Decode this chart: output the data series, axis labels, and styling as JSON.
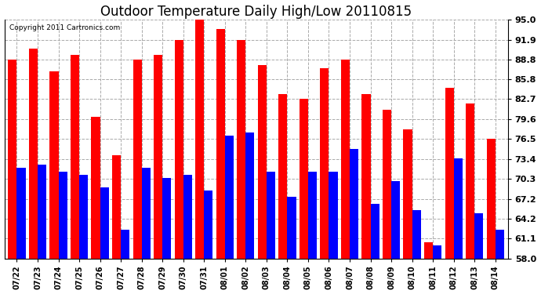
{
  "title": "Outdoor Temperature Daily High/Low 20110815",
  "copyright": "Copyright 2011 Cartronics.com",
  "labels": [
    "07/22",
    "07/23",
    "07/24",
    "07/25",
    "07/26",
    "07/27",
    "07/28",
    "07/29",
    "07/30",
    "07/31",
    "08/01",
    "08/02",
    "08/03",
    "08/04",
    "08/05",
    "08/06",
    "08/07",
    "08/08",
    "08/09",
    "08/10",
    "08/11",
    "08/12",
    "08/13",
    "08/14"
  ],
  "highs": [
    88.8,
    90.5,
    87.0,
    89.5,
    80.0,
    74.0,
    88.8,
    89.5,
    91.9,
    95.0,
    93.5,
    91.9,
    88.0,
    83.5,
    82.7,
    87.5,
    88.8,
    83.5,
    81.0,
    78.0,
    60.5,
    84.5,
    82.0,
    76.5
  ],
  "lows": [
    72.0,
    72.5,
    71.5,
    71.0,
    69.0,
    62.5,
    72.0,
    70.5,
    71.0,
    68.5,
    77.0,
    77.5,
    71.5,
    67.5,
    71.5,
    71.5,
    75.0,
    66.5,
    70.0,
    65.5,
    60.0,
    73.5,
    65.0,
    62.5
  ],
  "high_color": "#ff0000",
  "low_color": "#0000ff",
  "bg_color": "#ffffff",
  "grid_color": "#aaaaaa",
  "ylim_min": 58.0,
  "ylim_max": 95.0,
  "yticks": [
    58.0,
    61.1,
    64.2,
    67.2,
    70.3,
    73.4,
    76.5,
    79.6,
    82.7,
    85.8,
    88.8,
    91.9,
    95.0
  ],
  "title_fontsize": 12,
  "bar_width": 0.42,
  "bar_bottom": 58.0
}
